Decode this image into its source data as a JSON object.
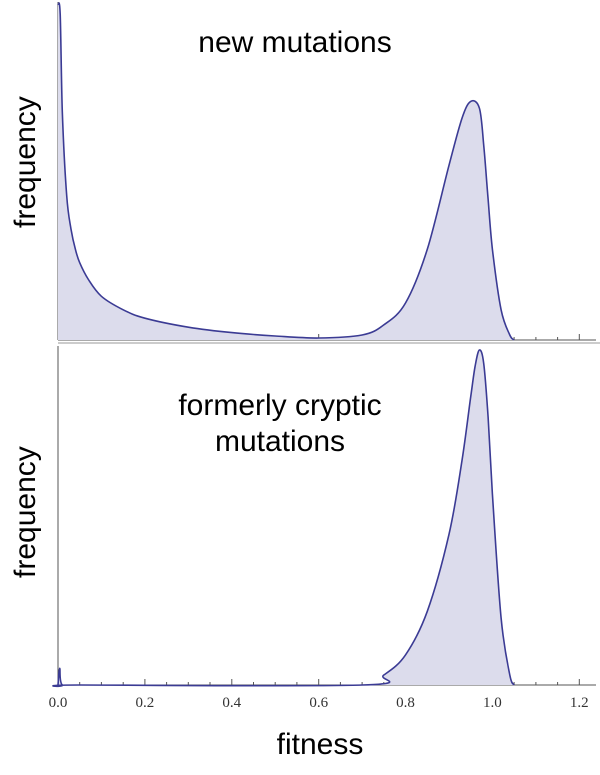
{
  "chart_data": [
    {
      "type": "area",
      "title": "new mutations",
      "xlabel": "",
      "ylabel": "frequency",
      "xlim": [
        0.0,
        1.22
      ],
      "x": [
        0.0,
        0.005,
        0.01,
        0.02,
        0.03,
        0.04,
        0.05,
        0.07,
        0.1,
        0.15,
        0.2,
        0.3,
        0.4,
        0.5,
        0.6,
        0.7,
        0.75,
        0.8,
        0.85,
        0.9,
        0.93,
        0.95,
        0.97,
        0.98,
        0.99,
        1.0,
        1.02,
        1.04,
        1.05
      ],
      "y": [
        1.0,
        0.97,
        0.68,
        0.43,
        0.33,
        0.27,
        0.23,
        0.18,
        0.13,
        0.09,
        0.065,
        0.038,
        0.022,
        0.012,
        0.006,
        0.015,
        0.045,
        0.11,
        0.27,
        0.52,
        0.66,
        0.71,
        0.69,
        0.58,
        0.42,
        0.27,
        0.09,
        0.015,
        0.0
      ],
      "grid": false
    },
    {
      "type": "area",
      "title": "formerly cryptic mutations",
      "title_lines": [
        "formerly cryptic",
        "mutations"
      ],
      "xlabel": "fitness",
      "ylabel": "frequency",
      "xlim": [
        0.0,
        1.22
      ],
      "x_ticks": [
        "0.0",
        "0.2",
        "0.4",
        "0.6",
        "0.8",
        "1.0",
        "1.2"
      ],
      "x": [
        0.0,
        0.004,
        0.01,
        0.05,
        0.7,
        0.75,
        0.8,
        0.85,
        0.9,
        0.93,
        0.95,
        0.96,
        0.97,
        0.98,
        0.99,
        1.0,
        1.02,
        1.04,
        1.05
      ],
      "y": [
        0.0,
        0.05,
        0.0,
        0.0,
        0.0,
        0.03,
        0.09,
        0.22,
        0.45,
        0.67,
        0.86,
        0.95,
        1.0,
        0.96,
        0.8,
        0.57,
        0.2,
        0.03,
        0.0
      ],
      "grid": false
    }
  ]
}
